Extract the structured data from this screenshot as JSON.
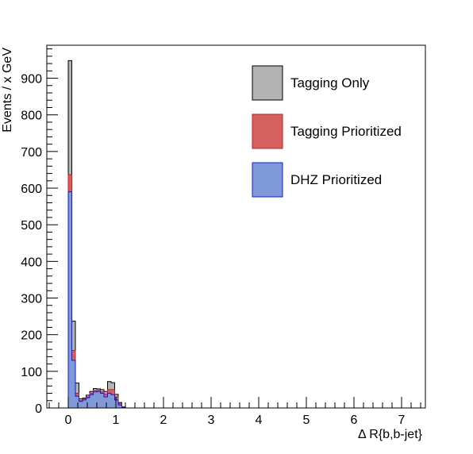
{
  "chart_data": {
    "type": "bar",
    "subtype": "overlaid-step-histogram",
    "title": "",
    "xlabel": "Δ R{b,b-jet}",
    "ylabel": "Events / x GeV",
    "xlim": [
      -0.45,
      7.5
    ],
    "ylim": [
      0,
      990
    ],
    "bin_width": 0.075,
    "x_bin_lower_edges": [
      0.0,
      0.075,
      0.15,
      0.225,
      0.3,
      0.375,
      0.45,
      0.525,
      0.6,
      0.675,
      0.75,
      0.825,
      0.9,
      0.975,
      1.05,
      1.125,
      1.2
    ],
    "x_ticks": [
      "0",
      "1",
      "2",
      "3",
      "4",
      "5",
      "6",
      "7"
    ],
    "y_ticks": [
      "0",
      "100",
      "200",
      "300",
      "400",
      "500",
      "600",
      "700",
      "800",
      "900"
    ],
    "grid": false,
    "legend_position": "top-right",
    "series": [
      {
        "name": "Tagging Only",
        "fill": "#b3b3b3",
        "line": "#000000",
        "values": [
          948,
          237,
          68,
          25,
          27,
          35,
          45,
          53,
          52,
          50,
          45,
          72,
          69,
          37,
          15,
          3,
          0
        ]
      },
      {
        "name": "Tagging Prioritized",
        "fill": "#d46060",
        "line": "#d01818",
        "values": [
          637,
          157,
          40,
          20,
          24,
          30,
          40,
          48,
          48,
          44,
          38,
          50,
          50,
          30,
          12,
          2,
          0
        ]
      },
      {
        "name": "DHZ Prioritized",
        "fill": "#7f9ad6",
        "line": "#0a1ae8",
        "values": [
          590,
          130,
          32,
          18,
          22,
          28,
          36,
          44,
          45,
          40,
          30,
          40,
          36,
          22,
          8,
          1,
          0
        ]
      }
    ]
  }
}
